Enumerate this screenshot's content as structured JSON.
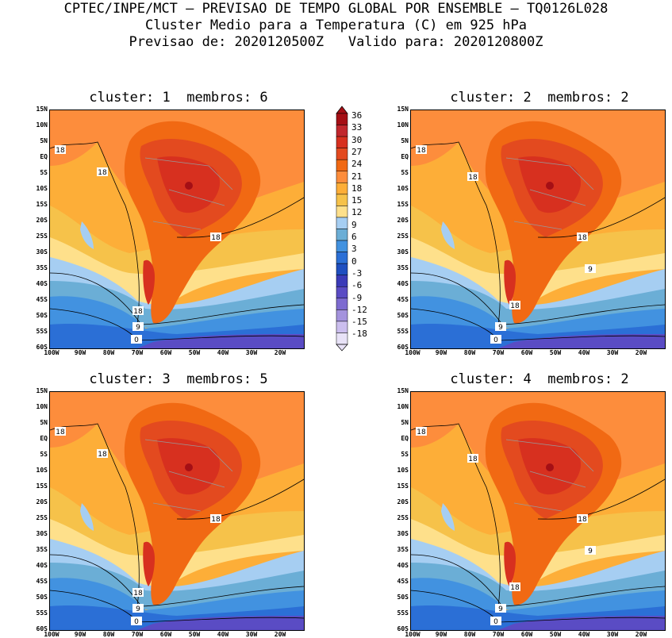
{
  "header": {
    "line1": "CPTEC/INPE/MCT – PREVISAO DE TEMPO GLOBAL POR ENSEMBLE – TQ0126L028",
    "line2": "Cluster Medio para a Temperatura (C) em 925 hPa",
    "line3": "Previsao de: 2020120500Z   Valido para: 2020120800Z"
  },
  "panels": [
    {
      "title": "cluster: 1  membros: 6",
      "contour_labels": [
        "18",
        "18",
        "18",
        "18",
        "9",
        "0"
      ]
    },
    {
      "title": "cluster: 2  membros: 2",
      "contour_labels": [
        "18",
        "18",
        "18",
        "9",
        "18",
        "9",
        "0"
      ]
    },
    {
      "title": "cluster: 3  membros: 5",
      "contour_labels": [
        "18",
        "18",
        "18",
        "18",
        "9",
        "0"
      ]
    },
    {
      "title": "cluster: 4  membros: 2",
      "contour_labels": [
        "18",
        "18",
        "18",
        "9",
        "18",
        "9",
        "0"
      ]
    }
  ],
  "axes": {
    "y_labels": [
      "15N",
      "10N",
      "5N",
      "EQ",
      "5S",
      "10S",
      "15S",
      "20S",
      "25S",
      "30S",
      "35S",
      "40S",
      "45S",
      "50S",
      "55S",
      "60S"
    ],
    "x_labels": [
      "100W",
      "90W",
      "80W",
      "70W",
      "60W",
      "50W",
      "40W",
      "30W",
      "20W"
    ]
  },
  "colorbar": {
    "labels": [
      "36",
      "33",
      "30",
      "27",
      "24",
      "21",
      "18",
      "15",
      "12",
      "9",
      "6",
      "3",
      "0",
      "-3",
      "-6",
      "-9",
      "-12",
      "-15",
      "-18"
    ],
    "colors": [
      "#a50f15",
      "#c1272d",
      "#d7301f",
      "#e34a1f",
      "#f16913",
      "#fd8d3c",
      "#fdae38",
      "#f6c24a",
      "#fee08b",
      "#a6cef2",
      "#6baed6",
      "#4292e0",
      "#2b6fd6",
      "#1f4fc0",
      "#3b3bb8",
      "#5a4cc4",
      "#7d6bd0",
      "#a493dd",
      "#cbbeee",
      "#e8e2f7"
    ]
  }
}
